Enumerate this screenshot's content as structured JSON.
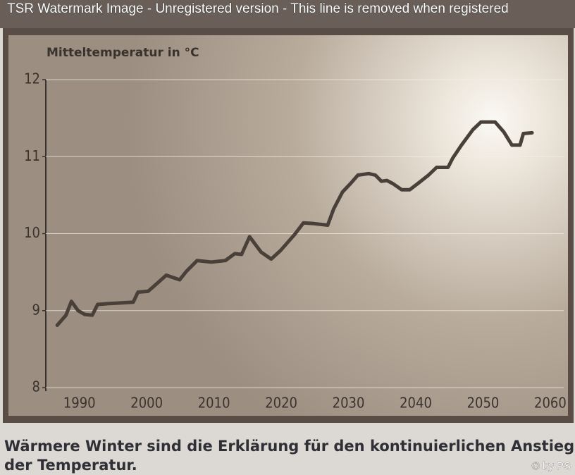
{
  "watermark": "TSR Watermark Image - Unregistered version - This line is removed when registered",
  "chart_data": {
    "type": "line",
    "y_axis_label": "Mitteltemperatur in °C",
    "x": [
      1986.7,
      1988.0,
      1988.8,
      1989.8,
      1990.8,
      1991.9,
      1992.7,
      1994.2,
      1996.3,
      1998.0,
      1998.7,
      2000.2,
      2001.5,
      2002.9,
      2004.9,
      2005.9,
      2007.5,
      2009.6,
      2011.7,
      2013.1,
      2014.1,
      2015.3,
      2017.0,
      2018.5,
      2019.9,
      2022.0,
      2023.3,
      2024.9,
      2026.9,
      2027.8,
      2029.1,
      2030.3,
      2031.4,
      2033.0,
      2034.0,
      2034.9,
      2035.7,
      2036.6,
      2037.9,
      2039.1,
      2040.3,
      2041.9,
      2043.1,
      2044.8,
      2045.5,
      2046.8,
      2048.5,
      2049.7,
      2051.8,
      2053.1,
      2054.3,
      2055.5,
      2056.0,
      2057.3
    ],
    "values": [
      8.81,
      8.94,
      9.12,
      9.0,
      8.95,
      8.94,
      9.08,
      9.09,
      9.1,
      9.11,
      9.24,
      9.25,
      9.35,
      9.46,
      9.4,
      9.51,
      9.65,
      9.63,
      9.65,
      9.74,
      9.73,
      9.96,
      9.76,
      9.67,
      9.78,
      9.99,
      10.14,
      10.13,
      10.11,
      10.32,
      10.54,
      10.65,
      10.76,
      10.78,
      10.76,
      10.68,
      10.69,
      10.65,
      10.57,
      10.57,
      10.65,
      10.76,
      10.86,
      10.86,
      10.98,
      11.15,
      11.35,
      11.45,
      11.45,
      11.32,
      11.15,
      11.15,
      11.3,
      11.31
    ],
    "color": "#4a403a",
    "xlim": [
      1985,
      2062
    ],
    "ylim": [
      8,
      12
    ],
    "xticks": [
      1990,
      2000,
      2010,
      2020,
      2030,
      2040,
      2050,
      2060
    ],
    "yticks": [
      8,
      9,
      10,
      11,
      12
    ],
    "grid": true
  },
  "caption": [
    "Wärmere Winter sind die Erklärung für den kontinuierlichen Anstieg",
    "der Temperatur."
  ],
  "credit": "© by PS"
}
